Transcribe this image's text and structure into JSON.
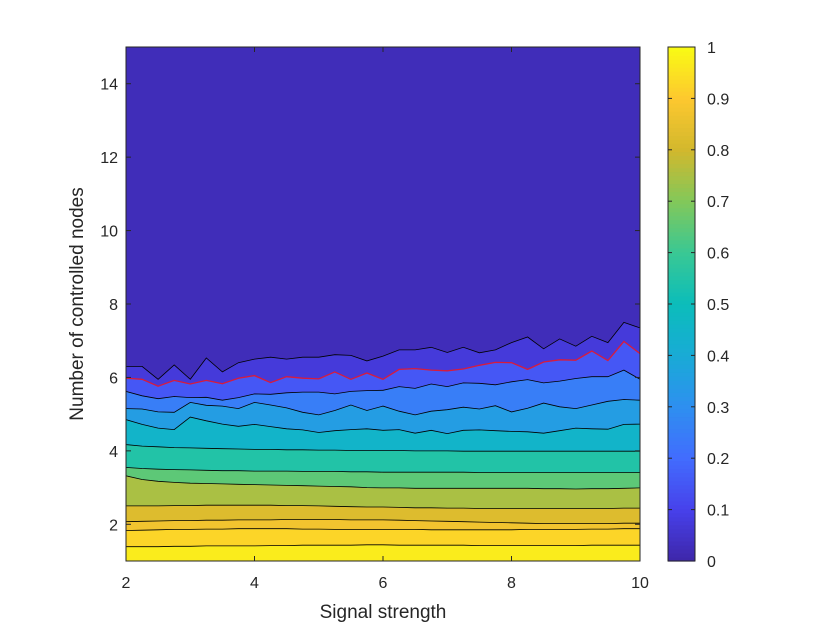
{
  "chart_data": {
    "type": "heatmap",
    "subtype": "filled-contour",
    "title": "",
    "xlabel": "Signal strength",
    "ylabel": "Number of controlled nodes",
    "xlim": [
      2,
      10
    ],
    "ylim": [
      1,
      15
    ],
    "xticks": [
      2,
      4,
      6,
      8,
      10
    ],
    "yticks": [
      2,
      4,
      6,
      8,
      10,
      12,
      14
    ],
    "colorbar": {
      "limits": [
        0,
        1
      ],
      "ticks": [
        0,
        0.1,
        0.2,
        0.3,
        0.4,
        0.5,
        0.6,
        0.7,
        0.8,
        0.9,
        1
      ],
      "colormap": "parula"
    },
    "contour_levels": [
      0,
      0.05,
      0.1,
      0.15,
      0.2,
      0.25,
      0.3,
      0.35,
      0.4,
      0.45,
      0.5,
      0.55,
      0.6,
      0.65,
      0.7,
      0.75,
      0.8,
      0.85,
      0.9,
      0.95,
      1
    ],
    "contour_line_color": "#000000",
    "highlight_level": {
      "value": 0.1,
      "color": "#d81b3c"
    },
    "x": [
      2.0,
      2.25,
      2.5,
      2.75,
      3.0,
      3.25,
      3.5,
      3.75,
      4.0,
      4.25,
      4.5,
      4.75,
      5.0,
      5.25,
      5.5,
      5.75,
      6.0,
      6.25,
      6.5,
      6.75,
      7.0,
      7.25,
      7.5,
      7.75,
      8.0,
      8.25,
      8.5,
      8.75,
      9.0,
      9.25,
      9.5,
      9.75,
      10.0
    ],
    "y": [
      1,
      2,
      3,
      4,
      5,
      6,
      7,
      8,
      9,
      10,
      11,
      12,
      13,
      14,
      15
    ],
    "z": [
      [
        0.95,
        0.95,
        0.95,
        0.95,
        0.95,
        0.95,
        0.95,
        0.95,
        0.95,
        0.95,
        0.95,
        0.95,
        0.95,
        0.95,
        0.95,
        0.95,
        0.95,
        0.95,
        0.95,
        0.95,
        0.95,
        0.95,
        0.95,
        0.95,
        0.95,
        0.95,
        0.95,
        0.95,
        0.95,
        0.95,
        0.95,
        0.95,
        0.95
      ],
      [
        0.8,
        0.8,
        0.8,
        0.8,
        0.8,
        0.8,
        0.8,
        0.8,
        0.8,
        0.8,
        0.8,
        0.8,
        0.8,
        0.8,
        0.8,
        0.8,
        0.8,
        0.8,
        0.8,
        0.8,
        0.8,
        0.8,
        0.8,
        0.8,
        0.8,
        0.8,
        0.8,
        0.8,
        0.8,
        0.8,
        0.8,
        0.8,
        0.8
      ],
      [
        0.62,
        0.62,
        0.62,
        0.62,
        0.62,
        0.62,
        0.61,
        0.61,
        0.61,
        0.61,
        0.61,
        0.6,
        0.6,
        0.6,
        0.6,
        0.6,
        0.6,
        0.59,
        0.59,
        0.59,
        0.59,
        0.59,
        0.59,
        0.59,
        0.59,
        0.59,
        0.59,
        0.59,
        0.59,
        0.59,
        0.59,
        0.59,
        0.59
      ],
      [
        0.44,
        0.44,
        0.44,
        0.44,
        0.44,
        0.44,
        0.44,
        0.44,
        0.44,
        0.44,
        0.44,
        0.44,
        0.44,
        0.44,
        0.44,
        0.44,
        0.44,
        0.44,
        0.44,
        0.44,
        0.44,
        0.44,
        0.44,
        0.44,
        0.44,
        0.44,
        0.44,
        0.44,
        0.44,
        0.44,
        0.44,
        0.44,
        0.44
      ],
      [
        0.3,
        0.3,
        0.3,
        0.3,
        0.31,
        0.3,
        0.31,
        0.31,
        0.3,
        0.31,
        0.31,
        0.3,
        0.3,
        0.31,
        0.31,
        0.3,
        0.31,
        0.31,
        0.3,
        0.31,
        0.3,
        0.31,
        0.31,
        0.3,
        0.3,
        0.31,
        0.31,
        0.3,
        0.31,
        0.31,
        0.3,
        0.31,
        0.31
      ],
      [
        0.09,
        0.09,
        0.09,
        0.09,
        0.09,
        0.09,
        0.09,
        0.1,
        0.1,
        0.1,
        0.1,
        0.1,
        0.1,
        0.1,
        0.1,
        0.1,
        0.11,
        0.11,
        0.11,
        0.11,
        0.11,
        0.11,
        0.11,
        0.12,
        0.12,
        0.12,
        0.12,
        0.12,
        0.12,
        0.13,
        0.13,
        0.13,
        0.13
      ],
      [
        0.01,
        0.01,
        0.01,
        0.01,
        0.01,
        0.01,
        0.01,
        0.01,
        0.02,
        0.02,
        0.02,
        0.02,
        0.02,
        0.02,
        0.02,
        0.02,
        0.02,
        0.02,
        0.02,
        0.02,
        0.02,
        0.03,
        0.03,
        0.03,
        0.04,
        0.04,
        0.04,
        0.04,
        0.04,
        0.05,
        0.05,
        0.05,
        0.05
      ],
      [
        0,
        0,
        0,
        0,
        0,
        0,
        0,
        0,
        0,
        0,
        0,
        0,
        0,
        0,
        0,
        0,
        0,
        0,
        0,
        0,
        0,
        0,
        0,
        0,
        0,
        0,
        0,
        0,
        0,
        0,
        0,
        0,
        0
      ],
      [
        0,
        0,
        0,
        0,
        0,
        0,
        0,
        0,
        0,
        0,
        0,
        0,
        0,
        0,
        0,
        0,
        0,
        0,
        0,
        0,
        0,
        0,
        0,
        0,
        0,
        0,
        0,
        0,
        0,
        0,
        0,
        0,
        0
      ],
      [
        0,
        0,
        0,
        0,
        0,
        0,
        0,
        0,
        0,
        0,
        0,
        0,
        0,
        0,
        0,
        0,
        0,
        0,
        0,
        0,
        0,
        0,
        0,
        0,
        0,
        0,
        0,
        0,
        0,
        0,
        0,
        0,
        0
      ],
      [
        0,
        0,
        0,
        0,
        0,
        0,
        0,
        0,
        0,
        0,
        0,
        0,
        0,
        0,
        0,
        0,
        0,
        0,
        0,
        0,
        0,
        0,
        0,
        0,
        0,
        0,
        0,
        0,
        0,
        0,
        0,
        0,
        0
      ],
      [
        0,
        0,
        0,
        0,
        0,
        0,
        0,
        0,
        0,
        0,
        0,
        0,
        0,
        0,
        0,
        0,
        0,
        0,
        0,
        0,
        0,
        0,
        0,
        0,
        0,
        0,
        0,
        0,
        0,
        0,
        0,
        0,
        0
      ],
      [
        0,
        0,
        0,
        0,
        0,
        0,
        0,
        0,
        0,
        0,
        0,
        0,
        0,
        0,
        0,
        0,
        0,
        0,
        0,
        0,
        0,
        0,
        0,
        0,
        0,
        0,
        0,
        0,
        0,
        0,
        0,
        0,
        0
      ],
      [
        0,
        0,
        0,
        0,
        0,
        0,
        0,
        0,
        0,
        0,
        0,
        0,
        0,
        0,
        0,
        0,
        0,
        0,
        0,
        0,
        0,
        0,
        0,
        0,
        0,
        0,
        0,
        0,
        0,
        0,
        0,
        0,
        0
      ],
      [
        0,
        0,
        0,
        0,
        0,
        0,
        0,
        0,
        0,
        0,
        0,
        0,
        0,
        0,
        0,
        0,
        0,
        0,
        0,
        0,
        0,
        0,
        0,
        0,
        0,
        0,
        0,
        0,
        0,
        0,
        0,
        0,
        0
      ]
    ],
    "boundary_curves": [
      {
        "level": 0.95,
        "y": [
          1.39,
          1.39,
          1.39,
          1.4,
          1.4,
          1.41,
          1.41,
          1.41,
          1.41,
          1.42,
          1.42,
          1.43,
          1.43,
          1.43,
          1.43,
          1.44,
          1.44,
          1.43,
          1.43,
          1.43,
          1.43,
          1.43,
          1.42,
          1.42,
          1.42,
          1.42,
          1.42,
          1.42,
          1.42,
          1.43,
          1.43,
          1.43,
          1.43
        ]
      },
      {
        "level": 0.9,
        "y": [
          1.83,
          1.84,
          1.85,
          1.86,
          1.86,
          1.87,
          1.87,
          1.88,
          1.88,
          1.88,
          1.88,
          1.87,
          1.87,
          1.86,
          1.86,
          1.86,
          1.86,
          1.86,
          1.86,
          1.85,
          1.85,
          1.85,
          1.85,
          1.85,
          1.85,
          1.86,
          1.86,
          1.86,
          1.86,
          1.87,
          1.87,
          1.88,
          1.88
        ]
      },
      {
        "level": 0.85,
        "y": [
          2.07,
          2.08,
          2.09,
          2.1,
          2.1,
          2.11,
          2.11,
          2.12,
          2.12,
          2.12,
          2.13,
          2.13,
          2.13,
          2.13,
          2.12,
          2.12,
          2.12,
          2.11,
          2.1,
          2.09,
          2.08,
          2.07,
          2.06,
          2.05,
          2.04,
          2.03,
          2.02,
          2.02,
          2.02,
          2.02,
          2.02,
          2.03,
          2.03
        ]
      },
      {
        "level": 0.8,
        "y": [
          2.5,
          2.5,
          2.5,
          2.51,
          2.51,
          2.52,
          2.52,
          2.52,
          2.52,
          2.52,
          2.51,
          2.51,
          2.5,
          2.49,
          2.48,
          2.47,
          2.47,
          2.46,
          2.45,
          2.45,
          2.44,
          2.44,
          2.43,
          2.43,
          2.43,
          2.43,
          2.43,
          2.43,
          2.43,
          2.43,
          2.43,
          2.44,
          2.44
        ]
      },
      {
        "level": 0.7,
        "y": [
          3.32,
          3.22,
          3.17,
          3.14,
          3.12,
          3.11,
          3.1,
          3.09,
          3.08,
          3.07,
          3.06,
          3.05,
          3.04,
          3.03,
          3.02,
          3.0,
          2.99,
          2.99,
          2.98,
          2.98,
          2.98,
          2.98,
          2.98,
          2.98,
          2.98,
          2.98,
          2.97,
          2.97,
          2.96,
          2.97,
          2.97,
          2.98,
          2.99
        ]
      },
      {
        "level": 0.6,
        "y": [
          3.55,
          3.52,
          3.5,
          3.49,
          3.48,
          3.47,
          3.46,
          3.46,
          3.45,
          3.45,
          3.45,
          3.44,
          3.44,
          3.44,
          3.43,
          3.43,
          3.42,
          3.42,
          3.42,
          3.42,
          3.42,
          3.42,
          3.41,
          3.41,
          3.41,
          3.41,
          3.41,
          3.41,
          3.41,
          3.41,
          3.41,
          3.41,
          3.41
        ]
      },
      {
        "level": 0.5,
        "y": [
          4.17,
          4.13,
          4.11,
          4.09,
          4.08,
          4.07,
          4.06,
          4.05,
          4.04,
          4.04,
          4.03,
          4.03,
          4.02,
          4.02,
          4.01,
          4.01,
          4.01,
          4.01,
          4.0,
          4.0,
          4.0,
          3.99,
          3.99,
          3.99,
          3.99,
          3.99,
          3.99,
          3.99,
          3.99,
          3.99,
          3.99,
          3.99,
          3.99
        ]
      },
      {
        "level": 0.4,
        "y": [
          4.85,
          4.72,
          4.62,
          4.58,
          4.92,
          4.82,
          4.73,
          4.67,
          4.72,
          4.66,
          4.6,
          4.57,
          4.5,
          4.55,
          4.58,
          4.6,
          4.56,
          4.58,
          4.48,
          4.56,
          4.47,
          4.56,
          4.57,
          4.55,
          4.53,
          4.52,
          4.48,
          4.55,
          4.62,
          4.6,
          4.59,
          4.72,
          4.73
        ]
      },
      {
        "level": 0.3,
        "y": [
          5.15,
          5.14,
          5.06,
          5.05,
          5.32,
          5.24,
          5.22,
          5.15,
          5.32,
          5.25,
          5.17,
          5.05,
          4.98,
          5.1,
          5.25,
          5.1,
          5.22,
          5.08,
          4.98,
          5.08,
          5.12,
          5.19,
          5.14,
          5.23,
          5.06,
          5.16,
          5.3,
          5.2,
          5.15,
          5.25,
          5.35,
          5.4,
          5.38
        ]
      },
      {
        "level": 0.2,
        "y": [
          5.62,
          5.5,
          5.42,
          5.48,
          5.45,
          5.46,
          5.38,
          5.45,
          5.55,
          5.54,
          5.58,
          5.6,
          5.6,
          5.55,
          5.62,
          5.64,
          5.65,
          5.75,
          5.7,
          5.82,
          5.75,
          5.85,
          5.84,
          5.8,
          5.88,
          5.94,
          5.85,
          5.9,
          5.97,
          6.02,
          6.02,
          6.2,
          5.95
        ]
      },
      {
        "level": 0.1,
        "y": [
          5.98,
          5.95,
          5.76,
          5.92,
          5.82,
          5.92,
          5.83,
          5.98,
          6.05,
          5.86,
          6.02,
          5.98,
          5.96,
          6.15,
          5.95,
          6.12,
          5.95,
          6.22,
          6.24,
          6.2,
          6.18,
          6.23,
          6.33,
          6.41,
          6.4,
          6.22,
          6.42,
          6.48,
          6.47,
          6.72,
          6.46,
          6.98,
          6.65
        ]
      },
      {
        "level": 0.05,
        "y": [
          6.3,
          6.3,
          5.95,
          6.34,
          5.95,
          6.53,
          6.15,
          6.4,
          6.5,
          6.55,
          6.5,
          6.55,
          6.55,
          6.62,
          6.6,
          6.45,
          6.58,
          6.75,
          6.75,
          6.82,
          6.68,
          6.82,
          6.67,
          6.75,
          6.95,
          7.1,
          6.78,
          7.05,
          6.85,
          7.12,
          6.95,
          7.5,
          7.35
        ]
      }
    ]
  }
}
